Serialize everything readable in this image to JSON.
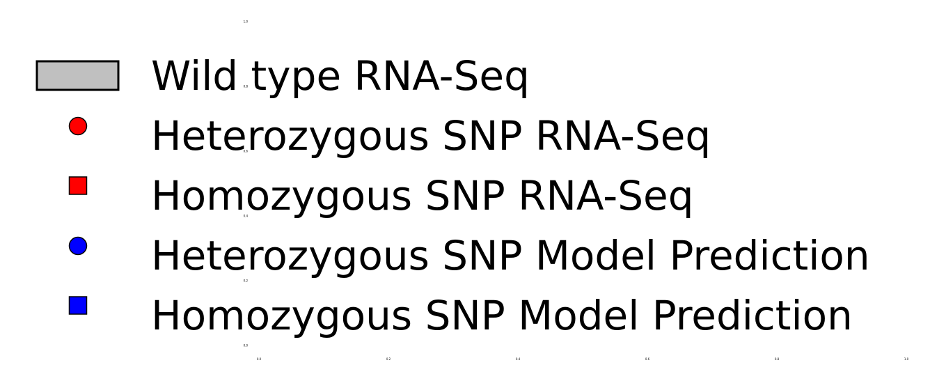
{
  "chart_data": {
    "type": "scatter",
    "title": "",
    "xlabel": "",
    "ylabel": "",
    "xlim": [
      0.0,
      1.0
    ],
    "ylim": [
      0.0,
      1.0
    ],
    "grid": false,
    "legend_placement": "center",
    "x_ticks": [
      "0.0",
      "0.2",
      "0.4",
      "0.6",
      "0.8",
      "1.0"
    ],
    "y_ticks": [
      "0.0",
      "0.2",
      "0.4",
      "0.6",
      "0.8",
      "1.0"
    ],
    "series": [
      {
        "name": "Wild type RNA-Seq",
        "marker": "bar",
        "color": "#c0c0c0",
        "edge_color": "#000000",
        "values": []
      },
      {
        "name": "Heterozygous SNP RNA-Seq",
        "marker": "circle",
        "color": "#ff0000",
        "edge_color": "#000000",
        "values": []
      },
      {
        "name": "Homozygous SNP RNA-Seq",
        "marker": "square",
        "color": "#ff0000",
        "edge_color": "#000000",
        "values": []
      },
      {
        "name": "Heterozygous SNP Model Prediction",
        "marker": "circle",
        "color": "#0000ff",
        "edge_color": "#000000",
        "values": []
      },
      {
        "name": "Homozygous SNP Model Prediction",
        "marker": "square",
        "color": "#0000ff",
        "edge_color": "#000000",
        "values": []
      }
    ]
  }
}
